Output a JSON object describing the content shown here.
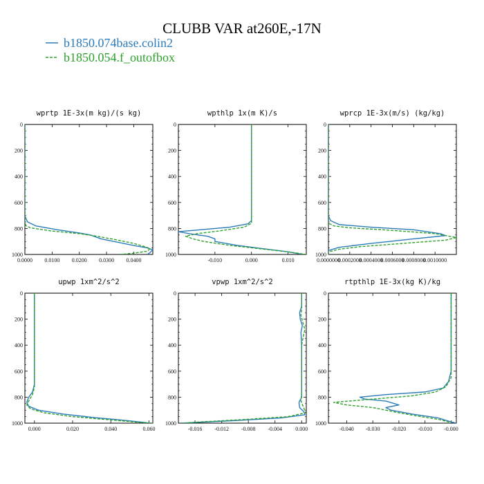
{
  "figure": {
    "title": "CLUBB VAR at260E,-17N",
    "legend": [
      {
        "label": "b1850.074base.colin2",
        "color": "#2b7bba",
        "dash": "solid"
      },
      {
        "label": "b1850.054.f_outofbox",
        "color": "#2ca02c",
        "dash": "dashed"
      }
    ]
  },
  "chart_data": [
    {
      "type": "line",
      "title": "wprtp  1E-3x(m kg)/(s kg)",
      "xlim": [
        0.0,
        0.047
      ],
      "ylim": [
        0,
        1000
      ],
      "y_inverted": true,
      "xticks": [
        0.0,
        0.01,
        0.02,
        0.03,
        0.04
      ],
      "xtick_labels": [
        "0.0000",
        "0.0100",
        "0.0200",
        "0.0300",
        "0.0400"
      ],
      "yticks": [
        0,
        200,
        400,
        600,
        800,
        1000
      ],
      "ytick_labels": [
        "0",
        "200",
        "400",
        "600",
        "800",
        "1000"
      ],
      "series": [
        {
          "name": "b1850.074base.colin2",
          "points": [
            [
              0.0,
              0
            ],
            [
              0.0,
              400
            ],
            [
              0.0,
              700
            ],
            [
              0.0005,
              730
            ],
            [
              0.001,
              750
            ],
            [
              0.004,
              780
            ],
            [
              0.012,
              810
            ],
            [
              0.02,
              835
            ],
            [
              0.024,
              850
            ],
            [
              0.028,
              880
            ],
            [
              0.035,
              910
            ],
            [
              0.041,
              935
            ],
            [
              0.045,
              950
            ],
            [
              0.047,
              965
            ],
            [
              0.046,
              985
            ],
            [
              0.045,
              1000
            ]
          ]
        },
        {
          "name": "b1850.054.f_outofbox",
          "points": [
            [
              0.0,
              0
            ],
            [
              0.0,
              400
            ],
            [
              0.0,
              760
            ],
            [
              0.0005,
              780
            ],
            [
              0.002,
              795
            ],
            [
              0.01,
              820
            ],
            [
              0.02,
              840
            ],
            [
              0.026,
              858
            ],
            [
              0.033,
              885
            ],
            [
              0.04,
              915
            ],
            [
              0.044,
              940
            ],
            [
              0.046,
              955
            ],
            [
              0.045,
              975
            ],
            [
              0.04,
              990
            ],
            [
              0.035,
              1000
            ]
          ]
        }
      ]
    },
    {
      "type": "line",
      "title": "wpthlp  1x(m K)/s",
      "xlim": [
        -0.02,
        0.015
      ],
      "ylim": [
        0,
        1000
      ],
      "y_inverted": true,
      "xticks": [
        -0.01,
        0.0,
        0.01
      ],
      "xtick_labels": [
        "-0.010",
        "0.000",
        "0.010"
      ],
      "yticks": [
        0,
        200,
        400,
        600,
        800,
        1000
      ],
      "ytick_labels": [
        "0",
        "200",
        "400",
        "600",
        "800",
        "1000"
      ],
      "series": [
        {
          "name": "b1850.074base.colin2",
          "points": [
            [
              0.0,
              0
            ],
            [
              0.0,
              300
            ],
            [
              0.0,
              600
            ],
            [
              0.0,
              740
            ],
            [
              -0.001,
              765
            ],
            [
              -0.006,
              790
            ],
            [
              -0.014,
              810
            ],
            [
              -0.02,
              825
            ],
            [
              -0.017,
              840
            ],
            [
              -0.012,
              860
            ],
            [
              -0.01,
              880
            ],
            [
              -0.01,
              900
            ],
            [
              -0.004,
              930
            ],
            [
              0.003,
              955
            ],
            [
              0.01,
              980
            ],
            [
              0.014,
              1000
            ]
          ]
        },
        {
          "name": "b1850.054.f_outofbox",
          "points": [
            [
              0.0,
              0
            ],
            [
              0.0,
              300
            ],
            [
              0.0,
              600
            ],
            [
              0.0,
              760
            ],
            [
              -0.002,
              790
            ],
            [
              -0.009,
              820
            ],
            [
              -0.015,
              840
            ],
            [
              -0.018,
              860
            ],
            [
              -0.016,
              880
            ],
            [
              -0.013,
              900
            ],
            [
              -0.006,
              930
            ],
            [
              0.002,
              955
            ],
            [
              0.01,
              980
            ],
            [
              0.015,
              1000
            ]
          ]
        }
      ]
    },
    {
      "type": "line",
      "title": "wprcp  1E-3x(m/s) (kg/kg)",
      "xlim": [
        0.0,
        0.0012
      ],
      "ylim": [
        0,
        1000
      ],
      "y_inverted": true,
      "xticks": [
        0.0,
        0.0002,
        0.0004,
        0.0006,
        0.0008,
        0.001
      ],
      "xtick_labels": [
        "0.0000000",
        "0.0002000",
        "0.0004000",
        "0.0006000",
        "0.0008000",
        "0.0010000"
      ],
      "yticks": [
        0,
        200,
        400,
        600,
        800,
        1000
      ],
      "ytick_labels": [
        "0",
        "200",
        "400",
        "600",
        "800",
        "1000"
      ],
      "series": [
        {
          "name": "b1850.074base.colin2",
          "points": [
            [
              0.0,
              0
            ],
            [
              0.0,
              400
            ],
            [
              0.0,
              700
            ],
            [
              2e-05,
              740
            ],
            [
              0.0001,
              770
            ],
            [
              0.0004,
              790
            ],
            [
              0.0008,
              810
            ],
            [
              0.00105,
              840
            ],
            [
              0.0011,
              855
            ],
            [
              0.0008,
              880
            ],
            [
              0.0004,
              915
            ],
            [
              0.0001,
              945
            ],
            [
              0.0,
              970
            ],
            [
              0.0,
              1000
            ]
          ]
        },
        {
          "name": "b1850.054.f_outofbox",
          "points": [
            [
              0.0,
              0
            ],
            [
              0.0,
              400
            ],
            [
              0.0,
              760
            ],
            [
              5e-05,
              780
            ],
            [
              0.0002,
              795
            ],
            [
              0.0006,
              815
            ],
            [
              0.001,
              840
            ],
            [
              0.0012,
              870
            ],
            [
              0.0011,
              890
            ],
            [
              0.0007,
              915
            ],
            [
              0.0003,
              940
            ],
            [
              0.0001,
              960
            ],
            [
              0.0,
              980
            ],
            [
              0.0,
              1000
            ]
          ]
        }
      ]
    },
    {
      "type": "line",
      "title": "upwp  1xm^2/s^2",
      "xlim": [
        -0.005,
        0.062
      ],
      "ylim": [
        0,
        1000
      ],
      "y_inverted": true,
      "xticks": [
        0.0,
        0.02,
        0.04,
        0.06
      ],
      "xtick_labels": [
        "0.000",
        "0.020",
        "0.040",
        "0.060"
      ],
      "yticks": [
        0,
        200,
        400,
        600,
        800,
        1000
      ],
      "ytick_labels": [
        "0",
        "200",
        "400",
        "600",
        "800",
        "1000"
      ],
      "series": [
        {
          "name": "b1850.074base.colin2",
          "points": [
            [
              0.0,
              0
            ],
            [
              0.0,
              200
            ],
            [
              0.0,
              400
            ],
            [
              0.0,
              700
            ],
            [
              -0.001,
              760
            ],
            [
              -0.003,
              800
            ],
            [
              -0.004,
              840
            ],
            [
              -0.003,
              870
            ],
            [
              0.002,
              900
            ],
            [
              0.015,
              930
            ],
            [
              0.03,
              955
            ],
            [
              0.045,
              975
            ],
            [
              0.058,
              995
            ],
            [
              0.06,
              1000
            ]
          ]
        },
        {
          "name": "b1850.054.f_outofbox",
          "points": [
            [
              0.0,
              0
            ],
            [
              0.0,
              200
            ],
            [
              0.0,
              400
            ],
            [
              0.0,
              720
            ],
            [
              -0.001,
              780
            ],
            [
              -0.003,
              830
            ],
            [
              -0.004,
              860
            ],
            [
              -0.002,
              890
            ],
            [
              0.005,
              920
            ],
            [
              0.02,
              950
            ],
            [
              0.04,
              975
            ],
            [
              0.058,
              998
            ],
            [
              0.062,
              1000
            ]
          ]
        }
      ]
    },
    {
      "type": "line",
      "title": "vpwp  1xm^2/s^2",
      "xlim": [
        -0.0185,
        0.0007
      ],
      "ylim": [
        0,
        1000
      ],
      "y_inverted": true,
      "xticks": [
        -0.016,
        -0.012,
        -0.008,
        -0.004,
        0.0
      ],
      "xtick_labels": [
        "-0.016",
        "-0.012",
        "-0.008",
        "-0.004",
        "0.000"
      ],
      "yticks": [
        0,
        200,
        400,
        600,
        800,
        1000
      ],
      "ytick_labels": [
        "0",
        "200",
        "400",
        "600",
        "800",
        "1000"
      ],
      "series": [
        {
          "name": "b1850.074base.colin2",
          "points": [
            [
              0.0,
              0
            ],
            [
              0.0,
              100
            ],
            [
              -0.0003,
              150
            ],
            [
              -0.0002,
              200
            ],
            [
              0.0001,
              250
            ],
            [
              -0.0001,
              300
            ],
            [
              0.0,
              400
            ],
            [
              0.0,
              600
            ],
            [
              0.0,
              800
            ],
            [
              -0.0004,
              840
            ],
            [
              -0.0003,
              880
            ],
            [
              0.0003,
              910
            ],
            [
              0.0005,
              935
            ],
            [
              -0.003,
              960
            ],
            [
              -0.01,
              980
            ],
            [
              -0.018,
              1000
            ]
          ]
        },
        {
          "name": "b1850.054.f_outofbox",
          "points": [
            [
              0.0,
              0
            ],
            [
              0.0,
              120
            ],
            [
              -0.0001,
              170
            ],
            [
              0.0002,
              230
            ],
            [
              0.0005,
              280
            ],
            [
              0.0003,
              320
            ],
            [
              0.0,
              400
            ],
            [
              0.0,
              600
            ],
            [
              0.0,
              780
            ],
            [
              -0.0001,
              830
            ],
            [
              0.0003,
              880
            ],
            [
              0.0006,
              920
            ],
            [
              -0.002,
              950
            ],
            [
              -0.008,
              970
            ],
            [
              -0.015,
              990
            ],
            [
              -0.018,
              1000
            ]
          ]
        }
      ]
    },
    {
      "type": "line",
      "title": "rtpthlp  1E-3x(kg K)/kg",
      "xlim": [
        -0.047,
        0.002
      ],
      "ylim": [
        0,
        1000
      ],
      "y_inverted": true,
      "xticks": [
        -0.04,
        -0.03,
        -0.02,
        -0.01,
        0.0
      ],
      "xtick_labels": [
        "-0.040",
        "-0.030",
        "-0.020",
        "-0.010",
        "-0.000"
      ],
      "yticks": [
        0,
        200,
        400,
        600,
        800,
        1000
      ],
      "ytick_labels": [
        "0",
        "200",
        "400",
        "600",
        "800",
        "1000"
      ],
      "series": [
        {
          "name": "b1850.074base.colin2",
          "points": [
            [
              0.0,
              0
            ],
            [
              0.0,
              300
            ],
            [
              0.0,
              600
            ],
            [
              -0.001,
              680
            ],
            [
              -0.003,
              730
            ],
            [
              -0.01,
              760
            ],
            [
              -0.025,
              780
            ],
            [
              -0.035,
              800
            ],
            [
              -0.033,
              815
            ],
            [
              -0.025,
              830
            ],
            [
              -0.02,
              860
            ],
            [
              -0.025,
              880
            ],
            [
              -0.023,
              900
            ],
            [
              -0.015,
              930
            ],
            [
              -0.005,
              960
            ],
            [
              0.0,
              990
            ],
            [
              0.002,
              1000
            ]
          ]
        },
        {
          "name": "b1850.054.f_outofbox",
          "points": [
            [
              0.0,
              0
            ],
            [
              0.0,
              300
            ],
            [
              0.0,
              650
            ],
            [
              -0.002,
              720
            ],
            [
              -0.006,
              760
            ],
            [
              -0.015,
              790
            ],
            [
              -0.03,
              815
            ],
            [
              -0.045,
              840
            ],
            [
              -0.04,
              860
            ],
            [
              -0.03,
              880
            ],
            [
              -0.025,
              900
            ],
            [
              -0.02,
              920
            ],
            [
              -0.013,
              945
            ],
            [
              -0.005,
              970
            ],
            [
              -0.001,
              990
            ],
            [
              0.0,
              1000
            ]
          ]
        }
      ]
    }
  ]
}
